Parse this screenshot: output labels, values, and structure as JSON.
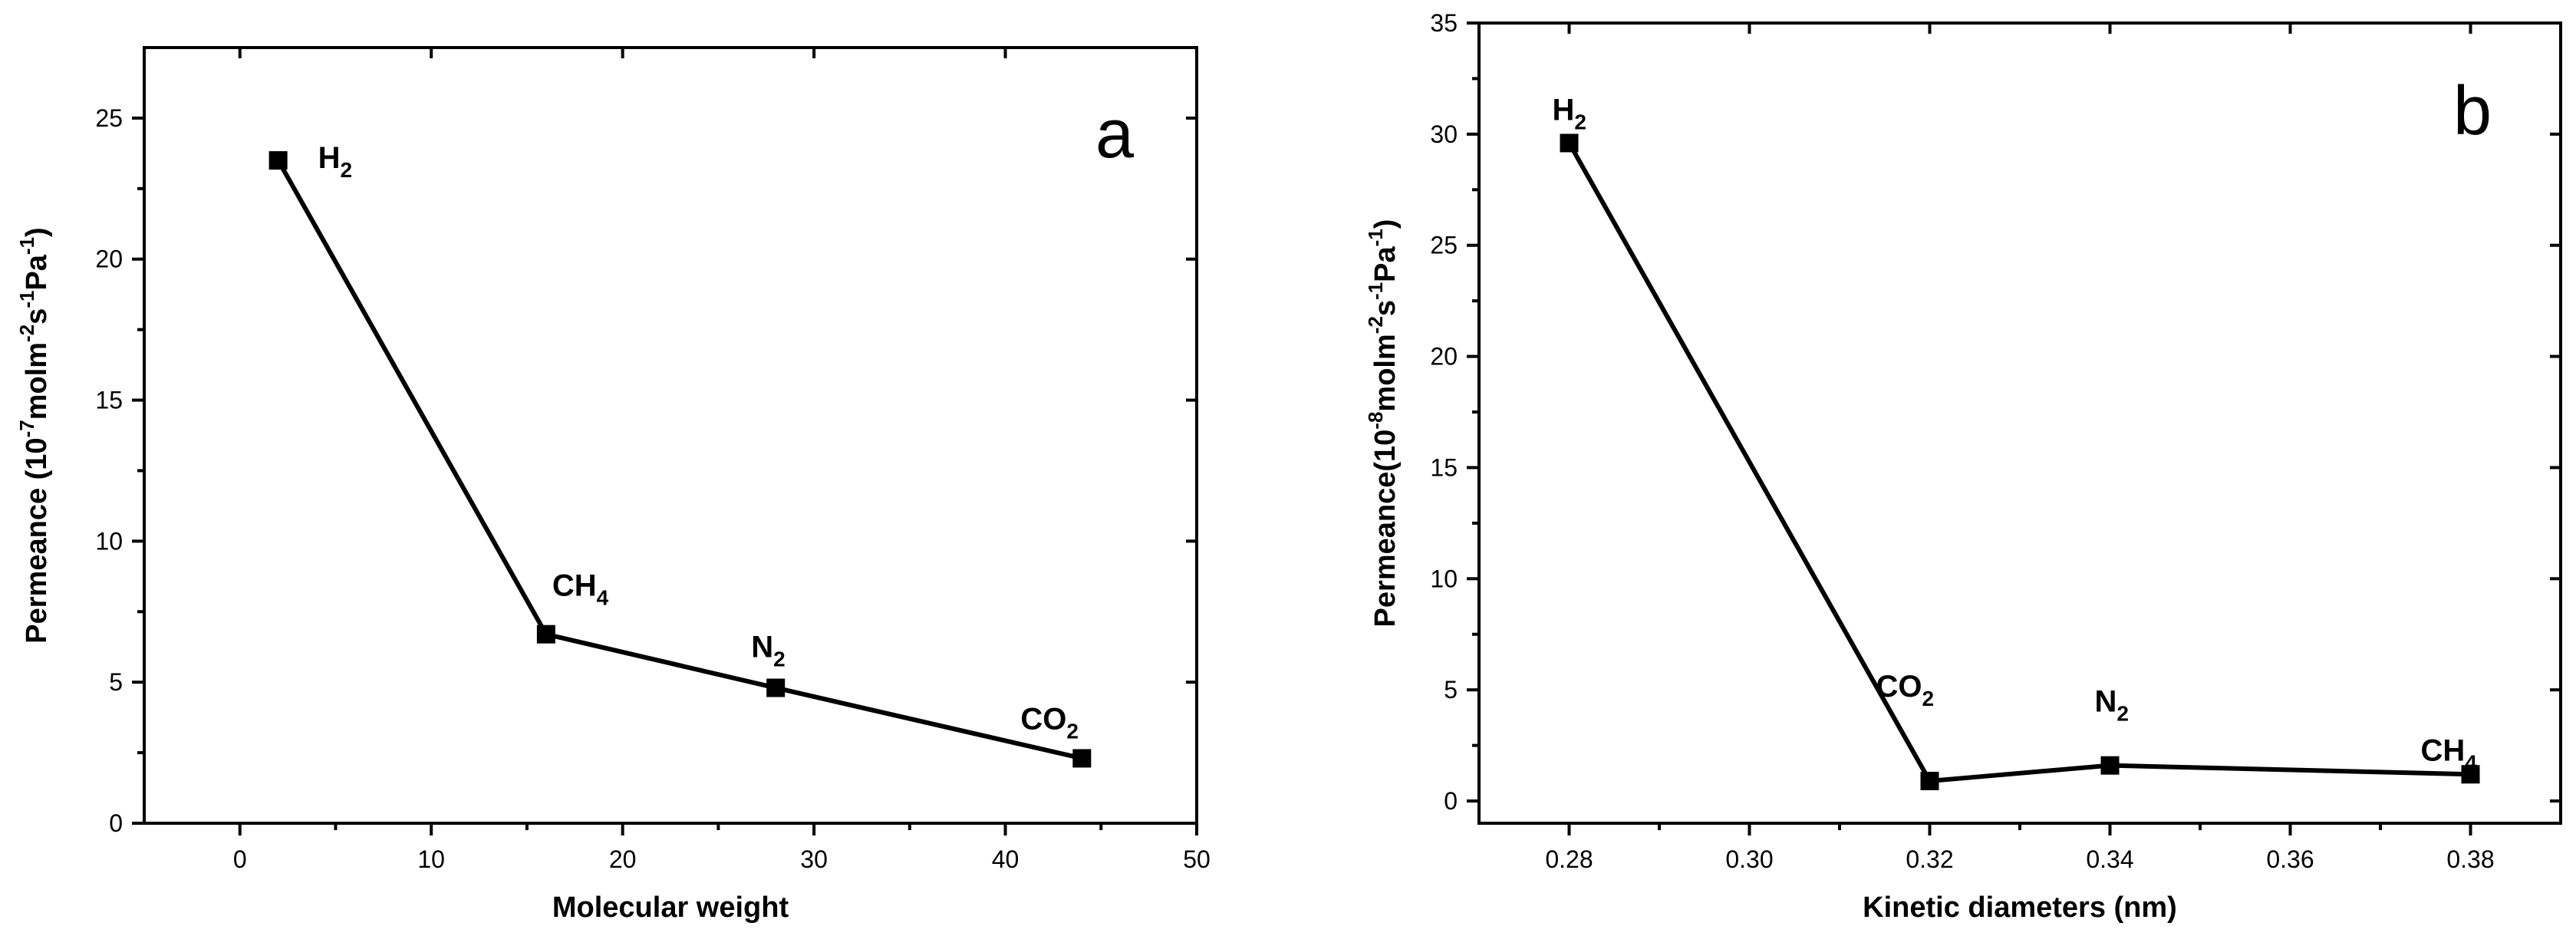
{
  "chart_data": [
    {
      "type": "line",
      "panel_label": "a",
      "xlabel": "Molecular weight",
      "ylabel_parts": [
        "Permeance (10",
        "-7",
        "molm",
        "-2",
        "s",
        "-1",
        "Pa",
        "-1",
        ")"
      ],
      "xlim": [
        -5,
        50
      ],
      "ylim": [
        0,
        27.5
      ],
      "xticks": [
        0,
        10,
        20,
        30,
        40,
        50
      ],
      "yticks": [
        0,
        5,
        10,
        15,
        20,
        25
      ],
      "tick_labels_x": [
        "0",
        "10",
        "20",
        "30",
        "40",
        "50"
      ],
      "tick_labels_y": [
        "0",
        "5",
        "10",
        "15",
        "20",
        "25"
      ],
      "points": [
        {
          "x": 2,
          "y": 23.5,
          "label": "H",
          "sub": "2"
        },
        {
          "x": 16,
          "y": 6.7,
          "label": "CH",
          "sub": "4"
        },
        {
          "x": 28,
          "y": 4.8,
          "label": "N",
          "sub": "2"
        },
        {
          "x": 44,
          "y": 2.3,
          "label": "CO",
          "sub": "2"
        }
      ]
    },
    {
      "type": "line",
      "panel_label": "b",
      "xlabel": "Kinetic diameters (nm)",
      "ylabel_parts": [
        "Permeance(10",
        "-8",
        "molm",
        "-2",
        "s",
        "-1",
        "Pa",
        "-1",
        ")"
      ],
      "xlim": [
        0.27,
        0.39
      ],
      "ylim": [
        -1,
        35
      ],
      "xticks": [
        0.28,
        0.3,
        0.32,
        0.34,
        0.36,
        0.38
      ],
      "yticks": [
        0,
        5,
        10,
        15,
        20,
        25,
        30,
        35
      ],
      "tick_labels_x": [
        "0.28",
        "0.30",
        "0.32",
        "0.34",
        "0.36",
        "0.38"
      ],
      "tick_labels_y": [
        "0",
        "5",
        "10",
        "15",
        "20",
        "25",
        "30",
        "35"
      ],
      "points": [
        {
          "x": 0.28,
          "y": 29.6,
          "label": "H",
          "sub": "2"
        },
        {
          "x": 0.32,
          "y": 0.9,
          "label": "CO",
          "sub": "2"
        },
        {
          "x": 0.34,
          "y": 1.6,
          "label": "N",
          "sub": "2"
        },
        {
          "x": 0.38,
          "y": 1.2,
          "label": "CH",
          "sub": "4"
        }
      ]
    }
  ]
}
